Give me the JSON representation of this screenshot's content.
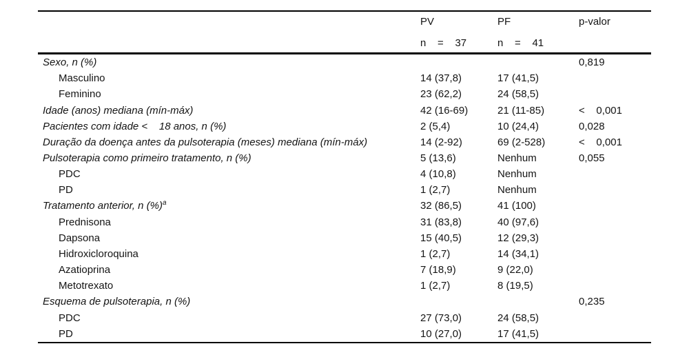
{
  "header": {
    "pv_title": "PV",
    "pv_n": "n    =    37",
    "pf_title": "PF",
    "pf_n": "n    =    41",
    "p_title": "p-valor"
  },
  "rows": [
    {
      "label": "Sexo, n (%)",
      "italic": true,
      "indent": false,
      "pv": "",
      "pf": "",
      "p": "0,819"
    },
    {
      "label": "Masculino",
      "italic": false,
      "indent": true,
      "pv": "14 (37,8)",
      "pf": "17 (41,5)",
      "p": ""
    },
    {
      "label": "Feminino",
      "italic": false,
      "indent": true,
      "pv": "23 (62,2)",
      "pf": "24 (58,5)",
      "p": ""
    },
    {
      "label": "Idade (anos) mediana (mín-máx)",
      "italic": true,
      "indent": false,
      "pv": "42 (16-69)",
      "pf": "21 (11-85)",
      "p": "<    0,001"
    },
    {
      "label": "Pacientes com idade <    18 anos, n (%)",
      "italic": true,
      "indent": false,
      "pv": "2 (5,4)",
      "pf": "10 (24,4)",
      "p": "0,028"
    },
    {
      "label": "Duração da doença antes da pulsoterapia (meses) mediana (mín-máx)",
      "italic": true,
      "indent": false,
      "pv": "14 (2-92)",
      "pf": "69 (2-528)",
      "p": "<    0,001"
    },
    {
      "label": "Pulsoterapia como primeiro tratamento, n (%)",
      "italic": true,
      "indent": false,
      "pv": "5 (13,6)",
      "pf": "Nenhum",
      "p": "0,055"
    },
    {
      "label": "PDC",
      "italic": false,
      "indent": true,
      "pv": "4 (10,8)",
      "pf": "Nenhum",
      "p": ""
    },
    {
      "label": "PD",
      "italic": false,
      "indent": true,
      "pv": "1 (2,7)",
      "pf": "Nenhum",
      "p": ""
    },
    {
      "label": "Tratamento anterior, n (%)",
      "sup": "a",
      "italic": true,
      "indent": false,
      "pv": "32 (86,5)",
      "pf": "41 (100)",
      "p": ""
    },
    {
      "label": "Prednisona",
      "italic": false,
      "indent": true,
      "pv": "31 (83,8)",
      "pf": "40 (97,6)",
      "p": ""
    },
    {
      "label": "Dapsona",
      "italic": false,
      "indent": true,
      "pv": "15 (40,5)",
      "pf": "12 (29,3)",
      "p": ""
    },
    {
      "label": "Hidroxicloroquina",
      "italic": false,
      "indent": true,
      "pv": "1 (2,7)",
      "pf": "14 (34,1)",
      "p": ""
    },
    {
      "label": "Azatioprina",
      "italic": false,
      "indent": true,
      "pv": "7 (18,9)",
      "pf": "9 (22,0)",
      "p": ""
    },
    {
      "label": "Metotrexato",
      "italic": false,
      "indent": true,
      "pv": "1 (2,7)",
      "pf": "8 (19,5)",
      "p": ""
    },
    {
      "label": "Esquema de pulsoterapia, n (%)",
      "italic": true,
      "indent": false,
      "pv": "",
      "pf": "",
      "p": "0,235"
    },
    {
      "label": "PDC",
      "italic": false,
      "indent": true,
      "pv": "27 (73,0)",
      "pf": "24 (58,5)",
      "p": ""
    },
    {
      "label": "PD",
      "italic": false,
      "indent": true,
      "pv": "10 (27,0)",
      "pf": "17 (41,5)",
      "p": ""
    }
  ]
}
